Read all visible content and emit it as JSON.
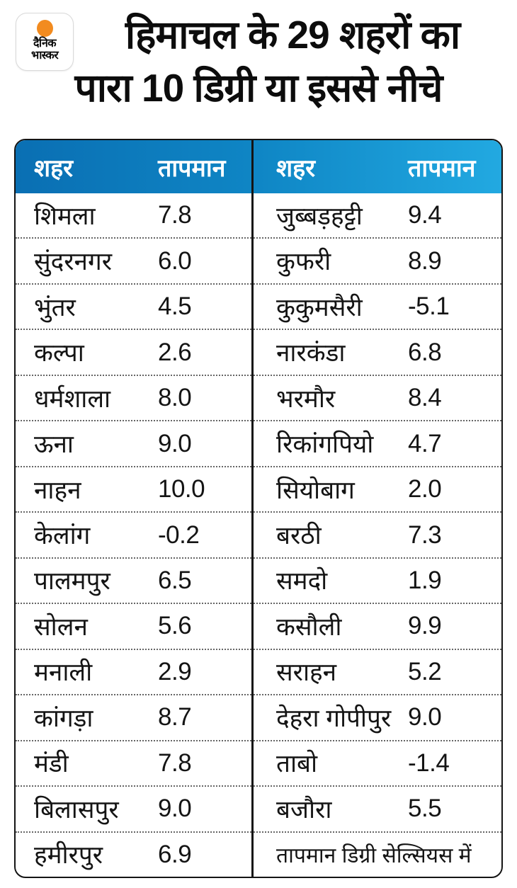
{
  "logo": {
    "line1": "दैनिक",
    "line2": "भास्कर",
    "dot_color": "#f28b1f"
  },
  "title": {
    "line1": "हिमाचल के 29 शहरों का",
    "line2": "पारा 10 डिग्री या इससे नीचे"
  },
  "table": {
    "header": {
      "city_label": "शहर",
      "temp_label": "तापमान"
    },
    "accent_gradient": [
      "#0a6fb3",
      "#22a9e1"
    ],
    "note": "तापमान डिग्री सेल्सियस में",
    "left_rows": [
      {
        "city": "शिमला",
        "temp": "7.8"
      },
      {
        "city": "सुंदरनगर",
        "temp": "6.0"
      },
      {
        "city": "भुंतर",
        "temp": "4.5"
      },
      {
        "city": "कल्पा",
        "temp": "2.6"
      },
      {
        "city": "धर्मशाला",
        "temp": "8.0"
      },
      {
        "city": "ऊना",
        "temp": "9.0"
      },
      {
        "city": "नाहन",
        "temp": "10.0"
      },
      {
        "city": "केलांग",
        "temp": "-0.2"
      },
      {
        "city": "पालमपुर",
        "temp": "6.5"
      },
      {
        "city": "सोलन",
        "temp": "5.6"
      },
      {
        "city": "मनाली",
        "temp": "2.9"
      },
      {
        "city": "कांगड़ा",
        "temp": "8.7"
      },
      {
        "city": "मंडी",
        "temp": "7.8"
      },
      {
        "city": "बिलासपुर",
        "temp": "9.0"
      },
      {
        "city": "हमीरपुर",
        "temp": "6.9"
      }
    ],
    "right_rows": [
      {
        "city": "जुब्बड़हट्टी",
        "temp": "9.4"
      },
      {
        "city": "कुफरी",
        "temp": "8.9"
      },
      {
        "city": "कुकुमसैरी",
        "temp": "-5.1"
      },
      {
        "city": "नारकंडा",
        "temp": "6.8"
      },
      {
        "city": "भरमौर",
        "temp": "8.4"
      },
      {
        "city": "रिकांगपियो",
        "temp": "4.7"
      },
      {
        "city": "सियोबाग",
        "temp": "2.0"
      },
      {
        "city": "बरठी",
        "temp": "7.3"
      },
      {
        "city": "समदो",
        "temp": "1.9"
      },
      {
        "city": "कसौली",
        "temp": "9.9"
      },
      {
        "city": "सराहन",
        "temp": "5.2"
      },
      {
        "city": "देहरा गोपीपुर",
        "temp": "9.0"
      },
      {
        "city": "ताबो",
        "temp": "-1.4"
      },
      {
        "city": "बजौरा",
        "temp": "5.5"
      }
    ]
  },
  "chart_data": {
    "type": "table",
    "title": "हिमाचल के 29 शहरों का पारा 10 डिग्री या इससे नीचे",
    "columns": [
      "शहर",
      "तापमान"
    ],
    "unit_note": "तापमान डिग्री सेल्सियस में",
    "rows": [
      [
        "शिमला",
        7.8
      ],
      [
        "सुंदरनगर",
        6.0
      ],
      [
        "भुंतर",
        4.5
      ],
      [
        "कल्पा",
        2.6
      ],
      [
        "धर्मशाला",
        8.0
      ],
      [
        "ऊना",
        9.0
      ],
      [
        "नाहन",
        10.0
      ],
      [
        "केलांग",
        -0.2
      ],
      [
        "पालमपुर",
        6.5
      ],
      [
        "सोलन",
        5.6
      ],
      [
        "मनाली",
        2.9
      ],
      [
        "कांगड़ा",
        8.7
      ],
      [
        "मंडी",
        7.8
      ],
      [
        "बिलासपुर",
        9.0
      ],
      [
        "हमीरपुर",
        6.9
      ],
      [
        "जुब्बड़हट्टी",
        9.4
      ],
      [
        "कुफरी",
        8.9
      ],
      [
        "कुकुमसैरी",
        -5.1
      ],
      [
        "नारकंडा",
        6.8
      ],
      [
        "भरमौर",
        8.4
      ],
      [
        "रिकांगपियो",
        4.7
      ],
      [
        "सियोबाग",
        2.0
      ],
      [
        "बरठी",
        7.3
      ],
      [
        "समदो",
        1.9
      ],
      [
        "कसौली",
        9.9
      ],
      [
        "सराहन",
        5.2
      ],
      [
        "देहरा गोपीपुर",
        9.0
      ],
      [
        "ताबो",
        -1.4
      ],
      [
        "बजौरा",
        5.5
      ]
    ]
  }
}
